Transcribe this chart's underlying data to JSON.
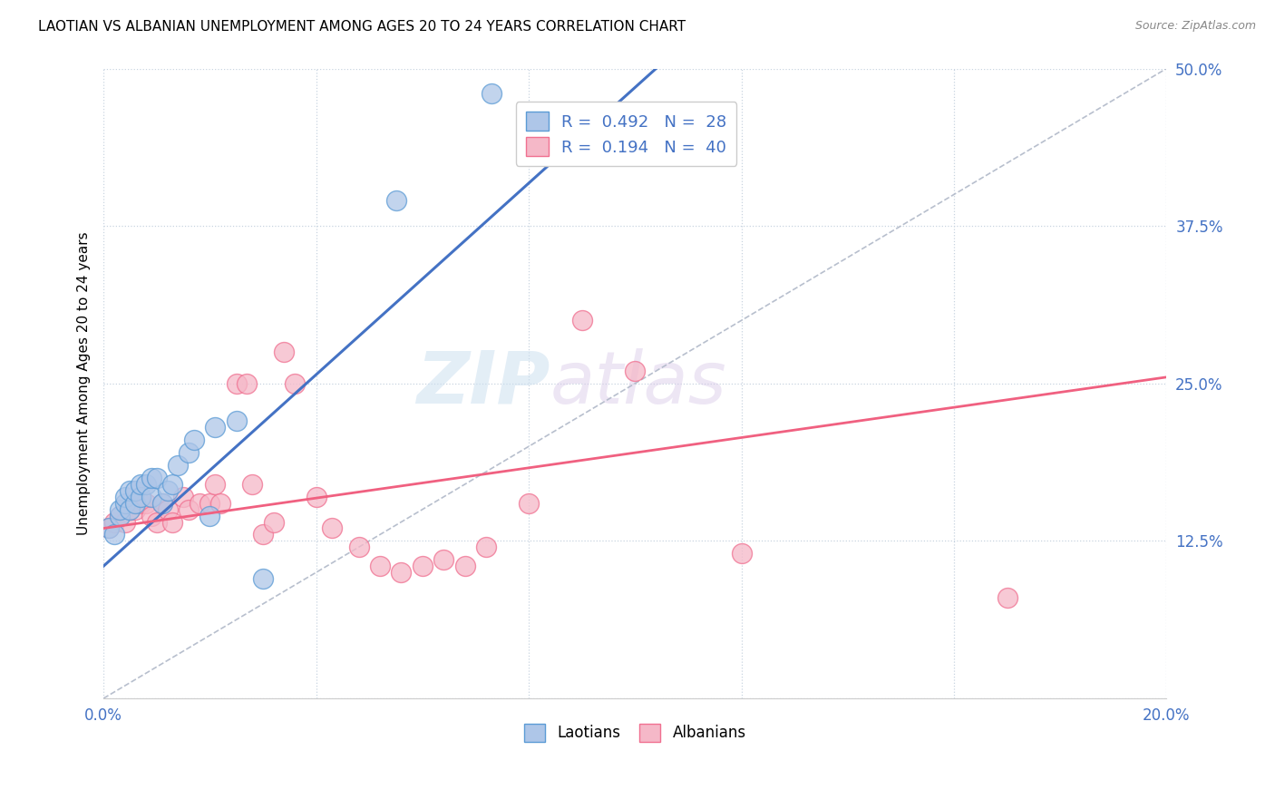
{
  "title": "LAOTIAN VS ALBANIAN UNEMPLOYMENT AMONG AGES 20 TO 24 YEARS CORRELATION CHART",
  "source": "Source: ZipAtlas.com",
  "ylabel": "Unemployment Among Ages 20 to 24 years",
  "xlim": [
    0.0,
    0.2
  ],
  "ylim": [
    0.0,
    0.5
  ],
  "xticks": [
    0.0,
    0.04,
    0.08,
    0.12,
    0.16,
    0.2
  ],
  "yticks": [
    0.0,
    0.125,
    0.25,
    0.375,
    0.5
  ],
  "xticklabels": [
    "0.0%",
    "",
    "",
    "",
    "",
    "20.0%"
  ],
  "yticklabels": [
    "",
    "12.5%",
    "25.0%",
    "37.5%",
    "50.0%"
  ],
  "watermark_zip": "ZIP",
  "watermark_atlas": "atlas",
  "laotian_color": "#aec6e8",
  "albanian_color": "#f5b8c8",
  "laotian_edge_color": "#5b9bd5",
  "albanian_edge_color": "#f07090",
  "laotian_line_color": "#4472c4",
  "albanian_line_color": "#f06080",
  "diagonal_color": "#b0b8c8",
  "laotians_x": [
    0.001,
    0.002,
    0.003,
    0.003,
    0.004,
    0.004,
    0.005,
    0.005,
    0.006,
    0.006,
    0.007,
    0.007,
    0.008,
    0.009,
    0.009,
    0.01,
    0.011,
    0.012,
    0.013,
    0.014,
    0.016,
    0.017,
    0.02,
    0.021,
    0.025,
    0.03,
    0.055,
    0.073
  ],
  "laotians_y": [
    0.135,
    0.13,
    0.145,
    0.15,
    0.155,
    0.16,
    0.15,
    0.165,
    0.155,
    0.165,
    0.16,
    0.17,
    0.17,
    0.16,
    0.175,
    0.175,
    0.155,
    0.165,
    0.17,
    0.185,
    0.195,
    0.205,
    0.145,
    0.215,
    0.22,
    0.095,
    0.395,
    0.48
  ],
  "albanians_x": [
    0.001,
    0.002,
    0.003,
    0.004,
    0.005,
    0.006,
    0.007,
    0.008,
    0.009,
    0.01,
    0.011,
    0.012,
    0.013,
    0.015,
    0.016,
    0.018,
    0.02,
    0.021,
    0.022,
    0.025,
    0.027,
    0.028,
    0.03,
    0.032,
    0.034,
    0.036,
    0.04,
    0.043,
    0.048,
    0.052,
    0.056,
    0.06,
    0.064,
    0.068,
    0.072,
    0.08,
    0.09,
    0.1,
    0.12,
    0.17
  ],
  "albanians_y": [
    0.135,
    0.14,
    0.145,
    0.14,
    0.15,
    0.15,
    0.155,
    0.155,
    0.145,
    0.14,
    0.155,
    0.15,
    0.14,
    0.16,
    0.15,
    0.155,
    0.155,
    0.17,
    0.155,
    0.25,
    0.25,
    0.17,
    0.13,
    0.14,
    0.275,
    0.25,
    0.16,
    0.135,
    0.12,
    0.105,
    0.1,
    0.105,
    0.11,
    0.105,
    0.12,
    0.155,
    0.3,
    0.26,
    0.115,
    0.08
  ],
  "laotian_trendline_x": [
    0.0,
    0.073
  ],
  "laotian_trendline_y_intercept_hint": 0.105,
  "laotian_trendline_slope_hint": 3.8,
  "albanian_trendline_y_intercept_hint": 0.135,
  "albanian_trendline_slope_hint": 0.6
}
